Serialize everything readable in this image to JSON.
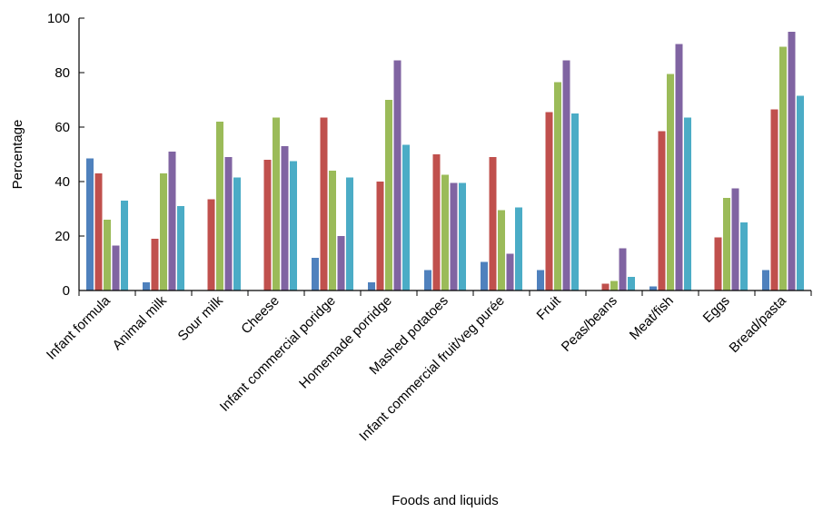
{
  "chart_data": {
    "type": "bar",
    "title": "",
    "xlabel": "Foods and liquids",
    "ylabel": "Percentage",
    "ylim": [
      0,
      100
    ],
    "yticks": [
      0,
      20,
      40,
      60,
      80,
      100
    ],
    "grid": false,
    "legend": "none",
    "categories": [
      "Infant formula",
      "Animal milk",
      "Sour milk",
      "Cheese",
      "Infant commercial poridge",
      "Homemade porridge",
      "Mashed potatoes",
      "Infant commercial fruit/veg purée",
      "Fruit",
      "Peas/beans",
      "Meat/fish",
      "Eggs",
      "Bread/pasta"
    ],
    "series": [
      {
        "color": "#4F81BD",
        "values": [
          48.5,
          3,
          0,
          0,
          12,
          3,
          7.5,
          10.5,
          7.5,
          0,
          1.5,
          0,
          7.5
        ]
      },
      {
        "color": "#C0504D",
        "values": [
          43,
          19,
          33.5,
          48,
          63.5,
          40,
          50,
          49,
          65.5,
          2.5,
          58.5,
          19.5,
          66.5
        ]
      },
      {
        "color": "#9BBB59",
        "values": [
          26,
          43,
          62,
          63.5,
          44,
          70,
          42.5,
          29.5,
          76.5,
          3.5,
          79.5,
          34,
          89.5
        ]
      },
      {
        "color": "#8064A2",
        "values": [
          16.5,
          51,
          49,
          53,
          20,
          84.5,
          39.5,
          13.5,
          84.5,
          15.5,
          90.5,
          37.5,
          95
        ]
      },
      {
        "color": "#4BACC6",
        "values": [
          33,
          31,
          41.5,
          47.5,
          41.5,
          53.5,
          39.5,
          30.5,
          65,
          5,
          63.5,
          25,
          71.5
        ]
      }
    ]
  }
}
